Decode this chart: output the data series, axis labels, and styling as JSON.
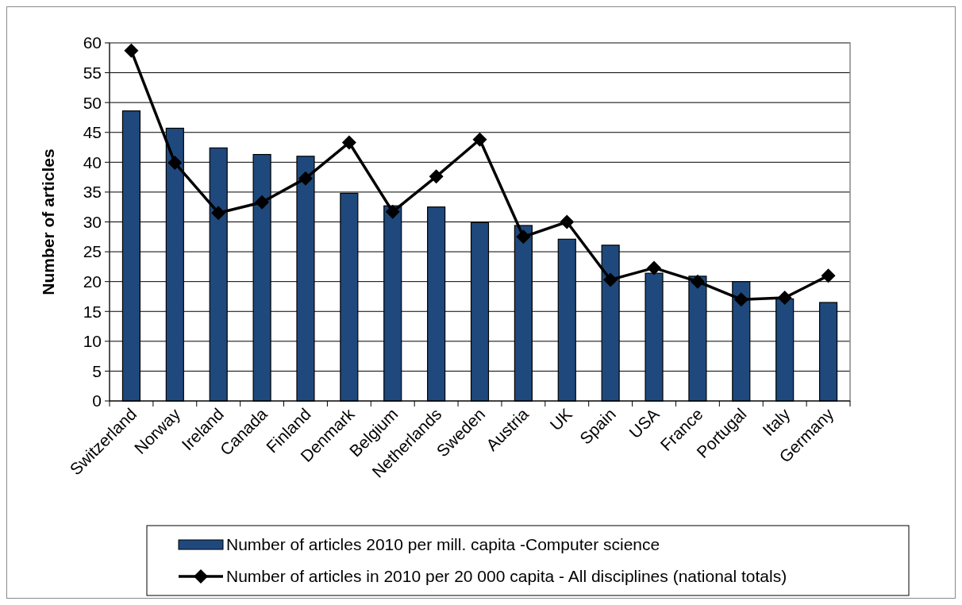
{
  "chart_data": {
    "type": "bar",
    "ylabel": "Number of articles",
    "categories": [
      "Switzerland",
      "Norway",
      "Ireland",
      "Canada",
      "Finland",
      "Denmark",
      "Belgium",
      "Netherlands",
      "Sweden",
      "Austria",
      "UK",
      "Spain",
      "USA",
      "France",
      "Portugal",
      "Italy",
      "Germany"
    ],
    "series": [
      {
        "name": "Number of articles 2010 per mill. capita -Computer science",
        "color": "#1f497d",
        "values": [
          48.6,
          45.7,
          42.4,
          41.3,
          41.0,
          34.8,
          32.7,
          32.5,
          29.9,
          29.4,
          27.1,
          26.1,
          21.4,
          20.9,
          20.0,
          17.1,
          16.5
        ]
      },
      {
        "name": "Number of articles in 2010 per 20 000 capita - All disciplines (national totals)",
        "type": "line",
        "color": "#000000",
        "marker": "diamond",
        "values": [
          58.7,
          39.9,
          31.5,
          33.3,
          37.3,
          43.3,
          31.7,
          37.6,
          43.8,
          27.5,
          30.0,
          20.3,
          22.3,
          20.0,
          17.0,
          17.3,
          21.0
        ]
      }
    ],
    "ylim": [
      0,
      60
    ],
    "yticks": [
      0,
      5,
      10,
      15,
      20,
      25,
      30,
      35,
      40,
      45,
      50,
      55,
      60
    ],
    "grid": "y",
    "legend": "bottom"
  }
}
